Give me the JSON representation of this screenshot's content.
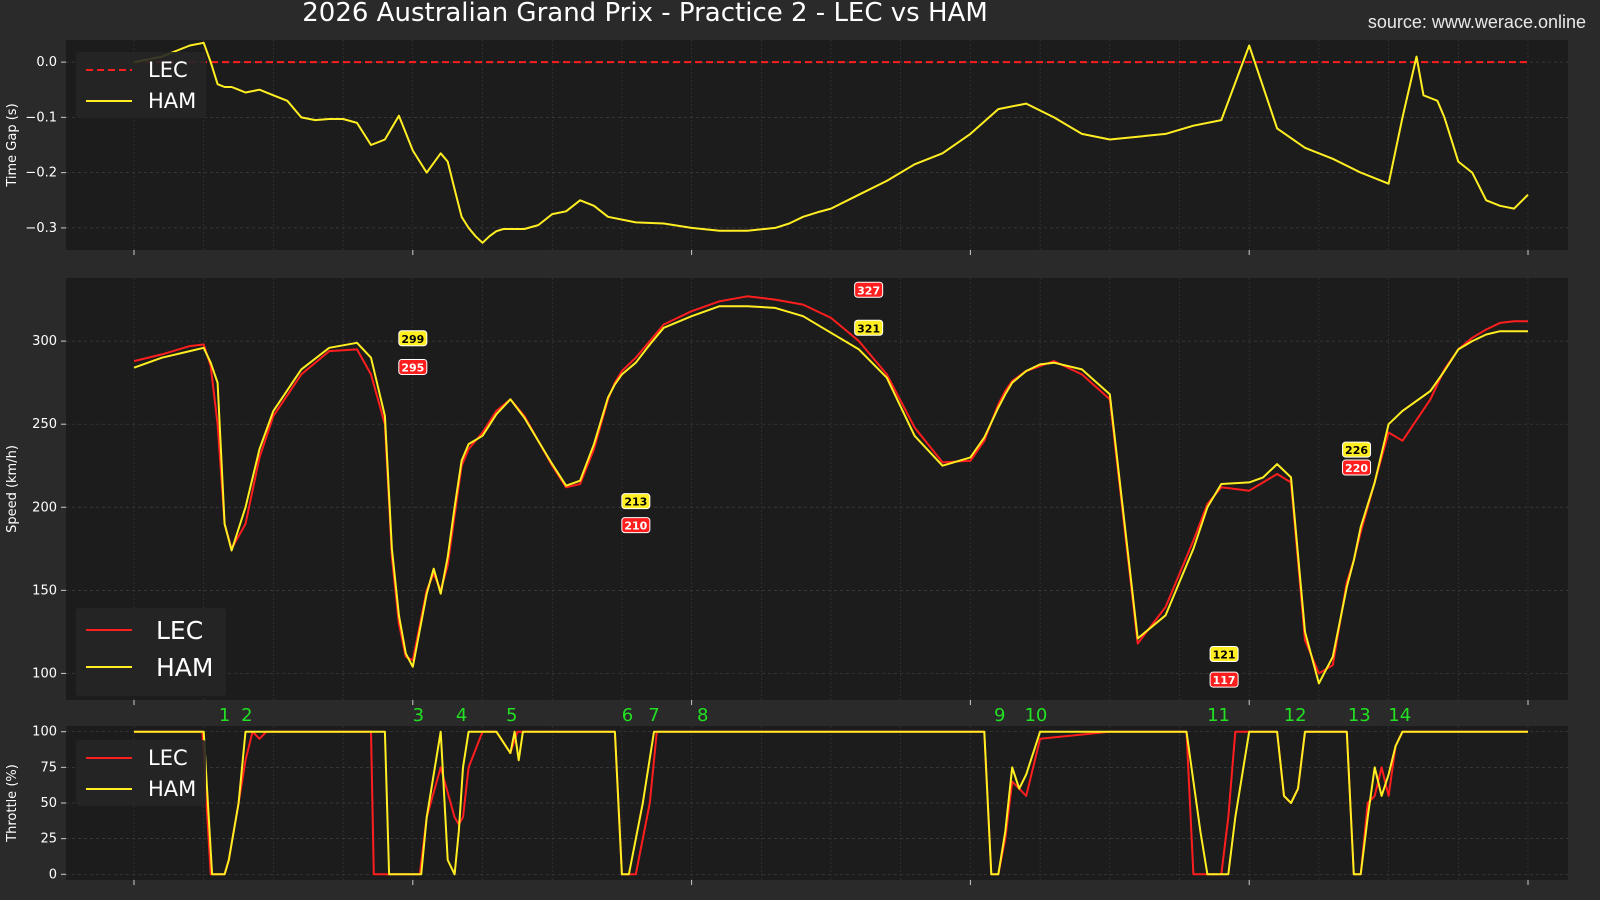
{
  "title": "2026 Australian Grand Prix - Practice 2 - LEC vs HAM",
  "source": "source: www.werace.online",
  "colors": {
    "LEC": "#ff1e1e",
    "HAM": "#ffee22",
    "turn": "#22e022",
    "background": "#1c1c1c"
  },
  "chart_data": [
    {
      "type": "line",
      "ylabel": "Time Gap (s)",
      "ylim": [
        -0.34,
        0.04
      ],
      "yticks": [
        0.0,
        -0.1,
        -0.2,
        -0.3
      ],
      "ytick_labels": [
        "0.0",
        "−0.1",
        "−0.2",
        "−0.3"
      ],
      "xlim": [
        -0.05,
        1.05
      ],
      "legend": "top-left",
      "series": [
        {
          "name": "LEC",
          "style": "dashed",
          "x": [
            0,
            1
          ],
          "y": [
            0,
            0
          ]
        },
        {
          "name": "HAM",
          "x": [
            0.0,
            0.02,
            0.04,
            0.05,
            0.055,
            0.06,
            0.065,
            0.07,
            0.075,
            0.08,
            0.09,
            0.1,
            0.11,
            0.12,
            0.13,
            0.14,
            0.15,
            0.16,
            0.17,
            0.18,
            0.19,
            0.2,
            0.21,
            0.22,
            0.225,
            0.23,
            0.235,
            0.24,
            0.245,
            0.25,
            0.255,
            0.26,
            0.265,
            0.27,
            0.275,
            0.28,
            0.29,
            0.3,
            0.31,
            0.32,
            0.33,
            0.34,
            0.36,
            0.38,
            0.4,
            0.42,
            0.44,
            0.46,
            0.47,
            0.48,
            0.49,
            0.5,
            0.52,
            0.54,
            0.56,
            0.58,
            0.6,
            0.62,
            0.64,
            0.66,
            0.68,
            0.7,
            0.72,
            0.74,
            0.76,
            0.78,
            0.8,
            0.82,
            0.84,
            0.86,
            0.88,
            0.9,
            0.91,
            0.92,
            0.925,
            0.93,
            0.935,
            0.94,
            0.95,
            0.96,
            0.97,
            0.98,
            0.99,
            1.0
          ],
          "y": [
            0.0,
            0.01,
            0.03,
            0.035,
            0.0,
            -0.04,
            -0.045,
            -0.045,
            -0.05,
            -0.055,
            -0.05,
            -0.06,
            -0.07,
            -0.1,
            -0.105,
            -0.103,
            -0.103,
            -0.11,
            -0.15,
            -0.14,
            -0.097,
            -0.16,
            -0.2,
            -0.165,
            -0.18,
            -0.23,
            -0.28,
            -0.3,
            -0.315,
            -0.327,
            -0.315,
            -0.306,
            -0.302,
            -0.302,
            -0.302,
            -0.302,
            -0.295,
            -0.275,
            -0.27,
            -0.25,
            -0.26,
            -0.28,
            -0.29,
            -0.292,
            -0.3,
            -0.305,
            -0.305,
            -0.3,
            -0.292,
            -0.28,
            -0.272,
            -0.265,
            -0.24,
            -0.215,
            -0.185,
            -0.165,
            -0.13,
            -0.085,
            -0.075,
            -0.1,
            -0.13,
            -0.14,
            -0.135,
            -0.13,
            -0.115,
            -0.105,
            0.03,
            -0.12,
            -0.155,
            -0.175,
            -0.2,
            -0.22,
            -0.1,
            0.01,
            -0.06,
            -0.065,
            -0.07,
            -0.1,
            -0.18,
            -0.2,
            -0.25,
            -0.26,
            -0.265,
            -0.24
          ]
        }
      ]
    },
    {
      "type": "line",
      "ylabel": "Speed (km/h)",
      "ylim": [
        84,
        338
      ],
      "yticks": [
        100,
        150,
        200,
        250,
        300
      ],
      "xlim": [
        -0.05,
        1.05
      ],
      "legend": "bottom-left",
      "series": [
        {
          "name": "LEC",
          "x": [
            0.0,
            0.02,
            0.04,
            0.05,
            0.055,
            0.06,
            0.065,
            0.07,
            0.08,
            0.09,
            0.1,
            0.12,
            0.14,
            0.16,
            0.17,
            0.18,
            0.185,
            0.19,
            0.195,
            0.2,
            0.21,
            0.215,
            0.22,
            0.225,
            0.23,
            0.235,
            0.24,
            0.25,
            0.26,
            0.27,
            0.28,
            0.3,
            0.31,
            0.32,
            0.33,
            0.34,
            0.345,
            0.35,
            0.36,
            0.37,
            0.38,
            0.4,
            0.42,
            0.44,
            0.46,
            0.48,
            0.5,
            0.52,
            0.54,
            0.56,
            0.58,
            0.6,
            0.61,
            0.62,
            0.625,
            0.63,
            0.64,
            0.65,
            0.66,
            0.68,
            0.7,
            0.72,
            0.74,
            0.76,
            0.77,
            0.78,
            0.8,
            0.81,
            0.82,
            0.83,
            0.84,
            0.85,
            0.86,
            0.87,
            0.875,
            0.88,
            0.89,
            0.9,
            0.91,
            0.93,
            0.94,
            0.95,
            0.96,
            0.97,
            0.98,
            0.99,
            1.0
          ],
          "y": [
            288,
            292,
            297,
            298,
            285,
            250,
            190,
            175,
            190,
            230,
            255,
            280,
            294,
            295,
            280,
            250,
            170,
            130,
            110,
            108,
            150,
            160,
            150,
            165,
            195,
            225,
            235,
            245,
            258,
            265,
            255,
            225,
            212,
            214,
            235,
            265,
            275,
            282,
            290,
            300,
            310,
            318,
            324,
            327,
            325,
            322,
            314,
            300,
            280,
            248,
            227,
            228,
            240,
            262,
            270,
            276,
            282,
            285,
            288,
            280,
            265,
            118,
            140,
            180,
            202,
            212,
            210,
            215,
            220,
            215,
            120,
            100,
            105,
            155,
            168,
            185,
            215,
            245,
            240,
            265,
            283,
            295,
            302,
            307,
            311,
            312,
            312
          ]
        },
        {
          "name": "HAM",
          "x": [
            0.0,
            0.02,
            0.04,
            0.05,
            0.055,
            0.06,
            0.065,
            0.07,
            0.08,
            0.09,
            0.1,
            0.12,
            0.14,
            0.16,
            0.17,
            0.18,
            0.185,
            0.19,
            0.195,
            0.2,
            0.21,
            0.215,
            0.22,
            0.225,
            0.23,
            0.235,
            0.24,
            0.25,
            0.26,
            0.27,
            0.28,
            0.3,
            0.31,
            0.32,
            0.33,
            0.34,
            0.345,
            0.35,
            0.36,
            0.37,
            0.38,
            0.4,
            0.42,
            0.44,
            0.46,
            0.48,
            0.5,
            0.52,
            0.54,
            0.56,
            0.58,
            0.6,
            0.61,
            0.62,
            0.625,
            0.63,
            0.64,
            0.65,
            0.66,
            0.68,
            0.7,
            0.72,
            0.74,
            0.76,
            0.77,
            0.78,
            0.8,
            0.81,
            0.82,
            0.83,
            0.84,
            0.85,
            0.86,
            0.87,
            0.875,
            0.88,
            0.89,
            0.9,
            0.91,
            0.93,
            0.94,
            0.95,
            0.96,
            0.97,
            0.98,
            0.99,
            1.0
          ],
          "y": [
            284,
            290,
            294,
            296,
            287,
            275,
            190,
            174,
            200,
            235,
            258,
            283,
            296,
            299,
            290,
            255,
            175,
            135,
            112,
            104,
            148,
            163,
            148,
            170,
            200,
            228,
            238,
            243,
            256,
            265,
            254,
            226,
            213,
            216,
            238,
            266,
            274,
            280,
            287,
            298,
            308,
            315,
            321,
            321,
            320,
            315,
            305,
            295,
            278,
            243,
            225,
            230,
            242,
            260,
            268,
            275,
            282,
            286,
            287,
            283,
            268,
            121,
            135,
            175,
            200,
            214,
            215,
            218,
            226,
            218,
            125,
            94,
            110,
            152,
            168,
            188,
            215,
            250,
            258,
            270,
            282,
            295,
            300,
            304,
            306,
            306,
            306
          ]
        }
      ],
      "annotations": [
        {
          "x": 0.2,
          "y": 299,
          "text": "299",
          "driver": "HAM"
        },
        {
          "x": 0.2,
          "y": 295,
          "text": "295",
          "driver": "LEC"
        },
        {
          "x": 0.36,
          "y": 213,
          "text": "213",
          "driver": "HAM"
        },
        {
          "x": 0.36,
          "y": 210,
          "text": "210",
          "driver": "LEC"
        },
        {
          "x": 0.527,
          "y": 327,
          "text": "327",
          "driver": "LEC"
        },
        {
          "x": 0.527,
          "y": 321,
          "text": "321",
          "driver": "HAM"
        },
        {
          "x": 0.782,
          "y": 121,
          "text": "121",
          "driver": "HAM"
        },
        {
          "x": 0.782,
          "y": 117,
          "text": "117",
          "driver": "LEC"
        },
        {
          "x": 0.877,
          "y": 226,
          "text": "226",
          "driver": "HAM"
        },
        {
          "x": 0.877,
          "y": 220,
          "text": "220",
          "driver": "LEC"
        }
      ],
      "corners": [
        {
          "x": 0.065,
          "label": "1"
        },
        {
          "x": 0.081,
          "label": "2"
        },
        {
          "x": 0.204,
          "label": "3"
        },
        {
          "x": 0.235,
          "label": "4"
        },
        {
          "x": 0.271,
          "label": "5"
        },
        {
          "x": 0.354,
          "label": "6"
        },
        {
          "x": 0.373,
          "label": "7"
        },
        {
          "x": 0.408,
          "label": "8"
        },
        {
          "x": 0.621,
          "label": "9"
        },
        {
          "x": 0.647,
          "label": "10"
        },
        {
          "x": 0.778,
          "label": "11"
        },
        {
          "x": 0.833,
          "label": "12"
        },
        {
          "x": 0.879,
          "label": "13"
        },
        {
          "x": 0.908,
          "label": "14"
        }
      ]
    },
    {
      "type": "line",
      "ylabel": "Throttle (%)",
      "ylim": [
        -4,
        104
      ],
      "yticks": [
        0,
        25,
        50,
        75,
        100
      ],
      "xlim": [
        -0.05,
        1.05
      ],
      "legend": "top-left",
      "series": [
        {
          "name": "LEC",
          "x": [
            0.0,
            0.049,
            0.052,
            0.055,
            0.065,
            0.068,
            0.075,
            0.08,
            0.085,
            0.09,
            0.095,
            0.17,
            0.172,
            0.19,
            0.2,
            0.205,
            0.21,
            0.22,
            0.23,
            0.233,
            0.236,
            0.24,
            0.25,
            0.26,
            0.27,
            0.275,
            0.345,
            0.35,
            0.36,
            0.37,
            0.375,
            0.61,
            0.615,
            0.62,
            0.625,
            0.63,
            0.635,
            0.64,
            0.65,
            0.7,
            0.755,
            0.76,
            0.77,
            0.78,
            0.785,
            0.79,
            0.8,
            0.82,
            0.825,
            0.83,
            0.835,
            0.84,
            0.845,
            0.87,
            0.875,
            0.88,
            0.885,
            0.89,
            0.895,
            0.9,
            0.905,
            0.91,
            0.93,
            1.0
          ],
          "y": [
            100,
            100,
            50,
            0,
            0,
            10,
            50,
            80,
            100,
            95,
            100,
            100,
            0,
            0,
            0,
            0,
            40,
            75,
            40,
            35,
            40,
            75,
            100,
            100,
            85,
            100,
            100,
            0,
            0,
            50,
            100,
            100,
            0,
            0,
            25,
            65,
            60,
            55,
            95,
            100,
            100,
            0,
            0,
            0,
            40,
            100,
            100,
            100,
            55,
            50,
            60,
            100,
            100,
            100,
            0,
            0,
            50,
            55,
            75,
            55,
            90,
            100,
            100,
            100
          ]
        },
        {
          "name": "HAM",
          "x": [
            0.0,
            0.05,
            0.053,
            0.056,
            0.065,
            0.068,
            0.075,
            0.08,
            0.085,
            0.1,
            0.18,
            0.183,
            0.19,
            0.2,
            0.206,
            0.21,
            0.22,
            0.225,
            0.23,
            0.233,
            0.236,
            0.24,
            0.25,
            0.26,
            0.27,
            0.273,
            0.276,
            0.279,
            0.345,
            0.35,
            0.355,
            0.365,
            0.373,
            0.61,
            0.615,
            0.62,
            0.625,
            0.63,
            0.635,
            0.64,
            0.65,
            0.66,
            0.7,
            0.755,
            0.765,
            0.77,
            0.78,
            0.785,
            0.79,
            0.8,
            0.82,
            0.825,
            0.83,
            0.835,
            0.84,
            0.845,
            0.87,
            0.875,
            0.88,
            0.885,
            0.89,
            0.895,
            0.9,
            0.905,
            0.91,
            0.93,
            1.0
          ],
          "y": [
            100,
            100,
            50,
            0,
            0,
            10,
            50,
            100,
            100,
            100,
            100,
            0,
            0,
            0,
            0,
            40,
            100,
            10,
            0,
            30,
            75,
            100,
            100,
            100,
            85,
            100,
            80,
            100,
            100,
            0,
            0,
            50,
            100,
            100,
            0,
            0,
            30,
            75,
            60,
            70,
            100,
            100,
            100,
            100,
            30,
            0,
            0,
            0,
            40,
            100,
            100,
            55,
            50,
            60,
            100,
            100,
            100,
            0,
            0,
            40,
            75,
            55,
            70,
            90,
            100,
            100,
            100
          ]
        }
      ]
    }
  ]
}
